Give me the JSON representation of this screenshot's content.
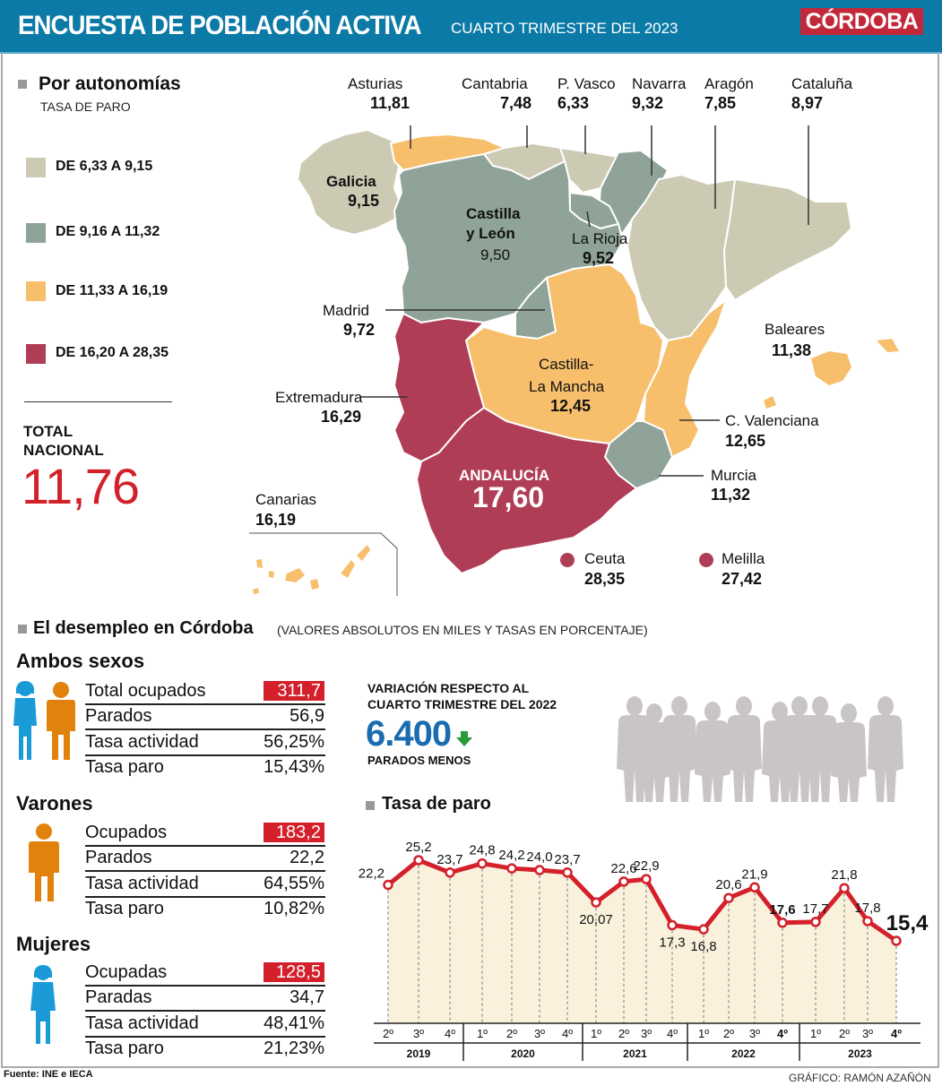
{
  "header": {
    "title": "ENCUESTA DE POBLACIÓN ACTIVA",
    "subtitle": "CUARTO TRIMESTRE DEL 2023",
    "logo": "CÓRDOBA"
  },
  "colors": {
    "header_bg": "#0c7aa6",
    "logo_bg": "#c3283a",
    "range1": "#cdcab4",
    "range2": "#8fa398",
    "range3": "#f7bf6c",
    "range4": "#b03d56",
    "highlight_red": "#d3202a",
    "line_red": "#d3202a",
    "female_blue": "#1a9bd7",
    "male_orange": "#e0820c",
    "variation_blue": "#1a6cb0",
    "arrow_green": "#2a9a3a",
    "chart_fill": "#faf1dd"
  },
  "map_section": {
    "title": "Por autonomías",
    "subtitle": "TASA DE PARO",
    "legend": [
      {
        "label": "DE 6,33 A 9,15",
        "color": "#cdcab4"
      },
      {
        "label": "DE 9,16 A 11,32",
        "color": "#8fa398"
      },
      {
        "label": "DE 11,33 A 16,19",
        "color": "#f7bf6c"
      },
      {
        "label": "DE 16,20 A 28,35",
        "color": "#b03d56"
      }
    ],
    "total_label_1": "TOTAL",
    "total_label_2": "NACIONAL",
    "total_value": "11,76",
    "regions": {
      "asturias": {
        "name": "Asturias",
        "value": "11,81"
      },
      "cantabria": {
        "name": "Cantabria",
        "value": "7,48"
      },
      "pvasco": {
        "name": "P. Vasco",
        "value": "6,33"
      },
      "navarra": {
        "name": "Navarra",
        "value": "9,32"
      },
      "aragon": {
        "name": "Aragón",
        "value": "7,85"
      },
      "cataluna": {
        "name": "Cataluña",
        "value": "8,97"
      },
      "galicia": {
        "name": "Galicia",
        "value": "9,15"
      },
      "cyl_1": {
        "name": "Castilla"
      },
      "cyl_2": {
        "name": "y León",
        "value": "9,50"
      },
      "rioja": {
        "name": "La Rioja",
        "value": "9,52"
      },
      "madrid": {
        "name": "Madrid",
        "value": "9,72"
      },
      "baleares": {
        "name": "Baleares",
        "value": "11,38"
      },
      "clm_1": {
        "name": "Castilla-"
      },
      "clm_2": {
        "name": "La Mancha",
        "value": "12,45"
      },
      "extremadura": {
        "name": "Extremadura",
        "value": "16,29"
      },
      "cvalenciana": {
        "name": "C. Valenciana",
        "value": "12,65"
      },
      "andalucia": {
        "name": "ANDALUCÍA",
        "value": "17,60"
      },
      "murcia": {
        "name": "Murcia",
        "value": "11,32"
      },
      "canarias": {
        "name": "Canarias",
        "value": "16,19"
      },
      "ceuta": {
        "name": "Ceuta",
        "value": "28,35"
      },
      "melilla": {
        "name": "Melilla",
        "value": "27,42"
      }
    }
  },
  "cordoba": {
    "title": "El desempleo en Córdoba",
    "note": "(VALORES ABSOLUTOS EN MILES Y TASAS EN PORCENTAJE)",
    "groups": [
      {
        "title": "Ambos sexos",
        "rows": [
          {
            "label": "Total ocupados",
            "value": "311,7"
          },
          {
            "label": "Parados",
            "value": "56,9"
          },
          {
            "label": "Tasa actividad",
            "value": "56,25%"
          },
          {
            "label": "Tasa paro",
            "value": "15,43%"
          }
        ]
      },
      {
        "title": "Varones",
        "rows": [
          {
            "label": "Ocupados",
            "value": "183,2"
          },
          {
            "label": "Parados",
            "value": "22,2"
          },
          {
            "label": "Tasa actividad",
            "value": "64,55%"
          },
          {
            "label": "Tasa paro",
            "value": "10,82%"
          }
        ]
      },
      {
        "title": "Mujeres",
        "rows": [
          {
            "label": "Ocupadas",
            "value": "128,5"
          },
          {
            "label": "Paradas",
            "value": "34,7"
          },
          {
            "label": "Tasa actividad",
            "value": "48,41%"
          },
          {
            "label": "Tasa paro",
            "value": "21,23%"
          }
        ]
      }
    ],
    "variation": {
      "heading_1": "VARIACIÓN RESPECTO AL",
      "heading_2": "CUARTO TRIMESTRE DEL 2022",
      "value": "6.400",
      "direction": "down",
      "caption": "PARADOS MENOS"
    }
  },
  "chart_data": {
    "type": "line",
    "title": "Tasa de paro",
    "xlabel": "",
    "ylabel": "",
    "categories": [
      "2º",
      "3º",
      "4º",
      "1º",
      "2º",
      "3º",
      "4º",
      "1º",
      "2º",
      "3º",
      "4º",
      "1º",
      "2º",
      "3º",
      "4º",
      "1º",
      "2º",
      "3º",
      "4º"
    ],
    "years": [
      {
        "label": "2019",
        "count": 3
      },
      {
        "label": "2020",
        "count": 4
      },
      {
        "label": "2021",
        "count": 4
      },
      {
        "label": "2022",
        "count": 4
      },
      {
        "label": "2023",
        "count": 4
      }
    ],
    "series": [
      {
        "name": "Tasa de paro",
        "values": [
          22.2,
          25.2,
          23.7,
          24.8,
          24.2,
          24.0,
          23.7,
          20.07,
          22.6,
          22.9,
          17.3,
          16.8,
          20.6,
          21.9,
          17.6,
          17.7,
          21.8,
          17.8,
          15.4
        ]
      }
    ],
    "value_labels": [
      "22,2",
      "25,2",
      "23,7",
      "24,8",
      "24,2",
      "24,0",
      "23,7",
      "20,07",
      "22,6",
      "22,9",
      "17,3",
      "16,8",
      "20,6",
      "21,9",
      "17,6",
      "17,7",
      "21,8",
      "17,8",
      "15,4"
    ],
    "bold_points": [
      14,
      18
    ],
    "ylim": [
      14,
      26
    ],
    "grid": "vertical-dashed"
  },
  "footer": {
    "source": "Fuente: INE e IECA",
    "credit": "GRÁFICO: RAMÓN AZAÑÓN"
  }
}
